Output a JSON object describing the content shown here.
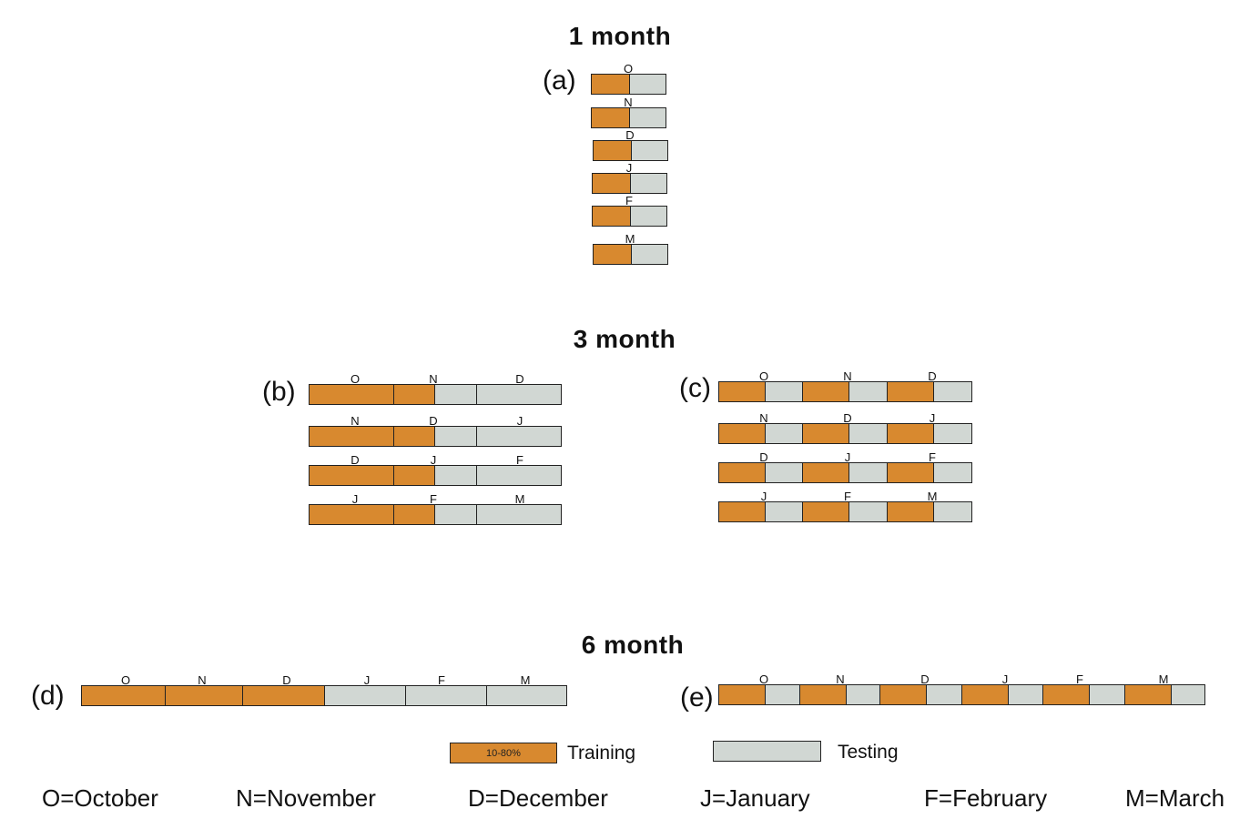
{
  "sections": {
    "one_month": "1 month",
    "three_month": "3 month",
    "six_month": "6 month"
  },
  "panels": {
    "a": "(a)",
    "b": "(b)",
    "c": "(c)",
    "d": "(d)",
    "e": "(e)"
  },
  "months_short": [
    "O",
    "N",
    "D",
    "J",
    "F",
    "M"
  ],
  "legend": {
    "training_label": "Training",
    "training_range": "10-80%",
    "testing_label": "Testing",
    "training_color": "#d8892f",
    "testing_color": "#d1d7d3"
  },
  "month_key": [
    "O=October",
    "N=November",
    "D=December",
    "J=January",
    "F=February",
    "M=March"
  ],
  "panel_rows": {
    "a": [
      [
        "O"
      ],
      [
        "N"
      ],
      [
        "D"
      ],
      [
        "J"
      ],
      [
        "F"
      ],
      [
        "M"
      ]
    ],
    "b": [
      [
        "O",
        "N",
        "D"
      ],
      [
        "N",
        "D",
        "J"
      ],
      [
        "D",
        "J",
        "F"
      ],
      [
        "J",
        "F",
        "M"
      ]
    ],
    "c": [
      [
        "O",
        "N",
        "D"
      ],
      [
        "N",
        "D",
        "J"
      ],
      [
        "D",
        "J",
        "F"
      ],
      [
        "J",
        "F",
        "M"
      ]
    ],
    "d": [
      [
        "O",
        "N",
        "D",
        "J",
        "F",
        "M"
      ]
    ],
    "e": [
      [
        "O",
        "N",
        "D",
        "J",
        "F",
        "M"
      ]
    ]
  }
}
